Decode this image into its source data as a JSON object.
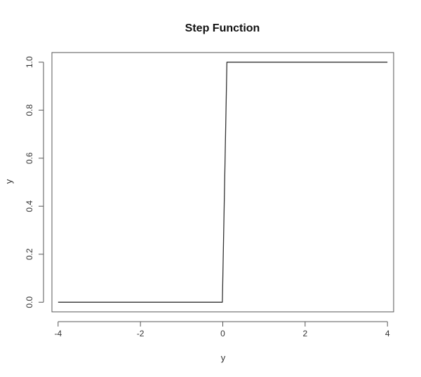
{
  "chart_data": {
    "type": "line",
    "title": "Step Function",
    "xlabel": "y",
    "ylabel": "y",
    "xlim": [
      -4.15,
      4.15
    ],
    "ylim": [
      -0.04,
      1.04
    ],
    "x_ticks": [
      -4,
      -2,
      0,
      2,
      4
    ],
    "x_tick_labels": [
      "-4",
      "-2",
      "0",
      "2",
      "4"
    ],
    "y_ticks": [
      0.0,
      0.2,
      0.4,
      0.6,
      0.8,
      1.0
    ],
    "y_tick_labels": [
      "0.0",
      "0.2",
      "0.4",
      "0.6",
      "0.8",
      "1.0"
    ],
    "grid": false,
    "series": [
      {
        "x": [
          -4,
          -0.01,
          0.1,
          4
        ],
        "y": [
          0,
          0,
          1,
          1
        ],
        "color": "#333333"
      }
    ]
  }
}
